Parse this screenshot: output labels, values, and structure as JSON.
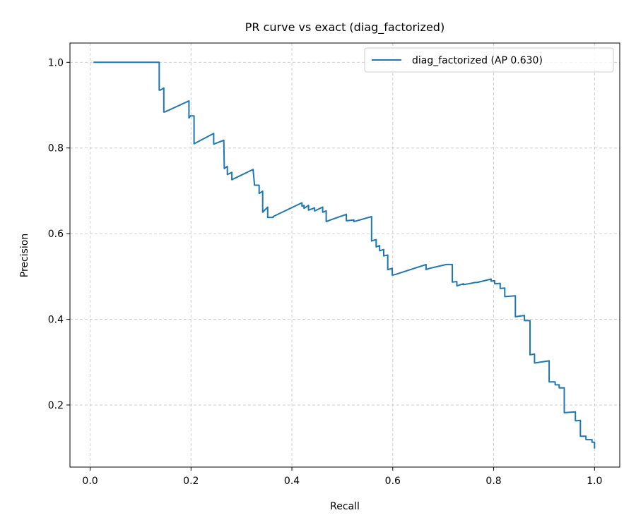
{
  "chart_data": {
    "type": "line",
    "title": "PR curve vs exact (diag_factorized)",
    "xlabel": "Recall",
    "ylabel": "Precision",
    "xlim": [
      -0.04,
      1.05
    ],
    "ylim": [
      0.055,
      1.045
    ],
    "xticks": [
      0.0,
      0.2,
      0.4,
      0.6,
      0.8,
      1.0
    ],
    "xtick_labels": [
      "0.0",
      "0.2",
      "0.4",
      "0.6",
      "0.8",
      "1.0"
    ],
    "yticks": [
      0.2,
      0.4,
      0.6,
      0.8,
      1.0
    ],
    "ytick_labels": [
      "0.2",
      "0.4",
      "0.6",
      "0.8",
      "1.0"
    ],
    "grid": true,
    "legend_position": "upper right",
    "series": [
      {
        "name": "diag_factorized (AP 0.630)",
        "color": "#1f77b4",
        "x": [
          0.008,
          0.137,
          0.137,
          0.139,
          0.146,
          0.146,
          0.148,
          0.196,
          0.196,
          0.199,
          0.206,
          0.206,
          0.245,
          0.245,
          0.265,
          0.265,
          0.266,
          0.272,
          0.272,
          0.281,
          0.281,
          0.323,
          0.323,
          0.326,
          0.335,
          0.335,
          0.342,
          0.342,
          0.352,
          0.352,
          0.363,
          0.363,
          0.42,
          0.42,
          0.424,
          0.424,
          0.433,
          0.433,
          0.445,
          0.445,
          0.461,
          0.461,
          0.468,
          0.468,
          0.479,
          0.479,
          0.508,
          0.508,
          0.523,
          0.523,
          0.558,
          0.558,
          0.567,
          0.567,
          0.574,
          0.574,
          0.582,
          0.582,
          0.59,
          0.59,
          0.599,
          0.599,
          0.606,
          0.606,
          0.666,
          0.666,
          0.673,
          0.673,
          0.706,
          0.706,
          0.718,
          0.718,
          0.727,
          0.727,
          0.74,
          0.74,
          0.75,
          0.75,
          0.763,
          0.763,
          0.767,
          0.795,
          0.795,
          0.802,
          0.802,
          0.813,
          0.813,
          0.822,
          0.822,
          0.843,
          0.843,
          0.861,
          0.861,
          0.872,
          0.872,
          0.881,
          0.881,
          0.91,
          0.91,
          0.922,
          0.922,
          0.93,
          0.93,
          0.94,
          0.94,
          0.962,
          0.962,
          0.972,
          0.972,
          0.983,
          0.983,
          0.995,
          0.995,
          1.0,
          1.0
        ],
        "y": [
          1.0,
          1.0,
          0.935,
          0.935,
          0.94,
          0.884,
          0.884,
          0.91,
          0.87,
          0.875,
          0.875,
          0.81,
          0.834,
          0.809,
          0.818,
          0.818,
          0.752,
          0.757,
          0.738,
          0.743,
          0.726,
          0.75,
          0.75,
          0.713,
          0.713,
          0.694,
          0.699,
          0.65,
          0.662,
          0.638,
          0.638,
          0.64,
          0.672,
          0.664,
          0.666,
          0.659,
          0.666,
          0.655,
          0.66,
          0.653,
          0.662,
          0.65,
          0.653,
          0.628,
          0.633,
          0.633,
          0.645,
          0.63,
          0.632,
          0.628,
          0.64,
          0.583,
          0.586,
          0.569,
          0.572,
          0.56,
          0.563,
          0.548,
          0.55,
          0.516,
          0.519,
          0.503,
          0.505,
          0.505,
          0.528,
          0.516,
          0.519,
          0.519,
          0.528,
          0.528,
          0.528,
          0.487,
          0.488,
          0.478,
          0.483,
          0.481,
          0.483,
          0.483,
          0.486,
          0.486,
          0.486,
          0.494,
          0.489,
          0.49,
          0.483,
          0.484,
          0.472,
          0.473,
          0.453,
          0.455,
          0.406,
          0.409,
          0.397,
          0.397,
          0.317,
          0.319,
          0.298,
          0.303,
          0.254,
          0.254,
          0.247,
          0.247,
          0.24,
          0.24,
          0.182,
          0.184,
          0.163,
          0.164,
          0.127,
          0.127,
          0.119,
          0.119,
          0.113,
          0.113,
          0.1
        ]
      }
    ]
  }
}
